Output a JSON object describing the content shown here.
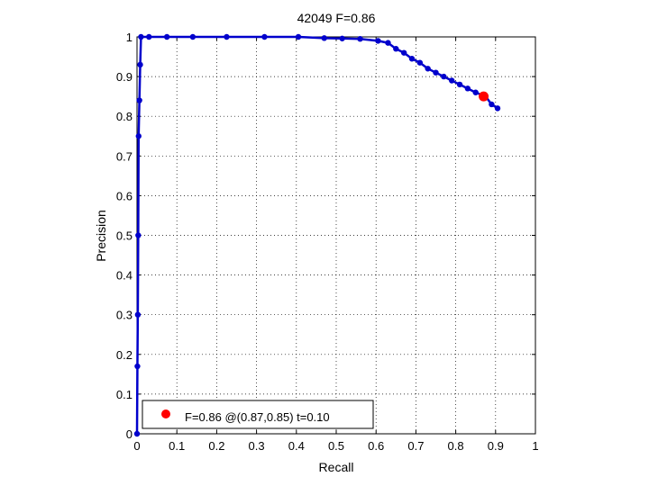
{
  "chart_data": {
    "type": "line",
    "title": "42049 F=0.86",
    "xlabel": "Recall",
    "ylabel": "Precision",
    "xlim": [
      0,
      1
    ],
    "ylim": [
      0,
      1
    ],
    "x_ticks": [
      "0",
      "0.1",
      "0.2",
      "0.3",
      "0.4",
      "0.5",
      "0.6",
      "0.7",
      "0.8",
      "0.9",
      "1"
    ],
    "y_ticks": [
      "0",
      "0.1",
      "0.2",
      "0.3",
      "0.4",
      "0.5",
      "0.6",
      "0.7",
      "0.8",
      "0.9",
      "1"
    ],
    "grid": true,
    "legend_position": "bottom-left",
    "series": [
      {
        "color": "#0000cc",
        "x": [
          0.0,
          0.001,
          0.002,
          0.003,
          0.004,
          0.006,
          0.008,
          0.01,
          0.03,
          0.075,
          0.14,
          0.225,
          0.32,
          0.405,
          0.47,
          0.515,
          0.56,
          0.605,
          0.63,
          0.65,
          0.67,
          0.69,
          0.71,
          0.73,
          0.75,
          0.77,
          0.79,
          0.81,
          0.83,
          0.85,
          0.875,
          0.89,
          0.905
        ],
        "y": [
          0.0,
          0.17,
          0.3,
          0.5,
          0.75,
          0.84,
          0.93,
          1.0,
          1.0,
          1.0,
          1.0,
          1.0,
          1.0,
          1.0,
          0.997,
          0.996,
          0.995,
          0.99,
          0.985,
          0.97,
          0.96,
          0.945,
          0.935,
          0.92,
          0.91,
          0.9,
          0.89,
          0.88,
          0.87,
          0.86,
          0.85,
          0.83,
          0.82
        ]
      },
      {
        "color": "#ff0000",
        "x": [
          0.87
        ],
        "y": [
          0.85
        ]
      }
    ],
    "legend": {
      "marker_color": "#ff0000",
      "label": "F=0.86 @(0.87,0.85) t=0.10"
    }
  }
}
